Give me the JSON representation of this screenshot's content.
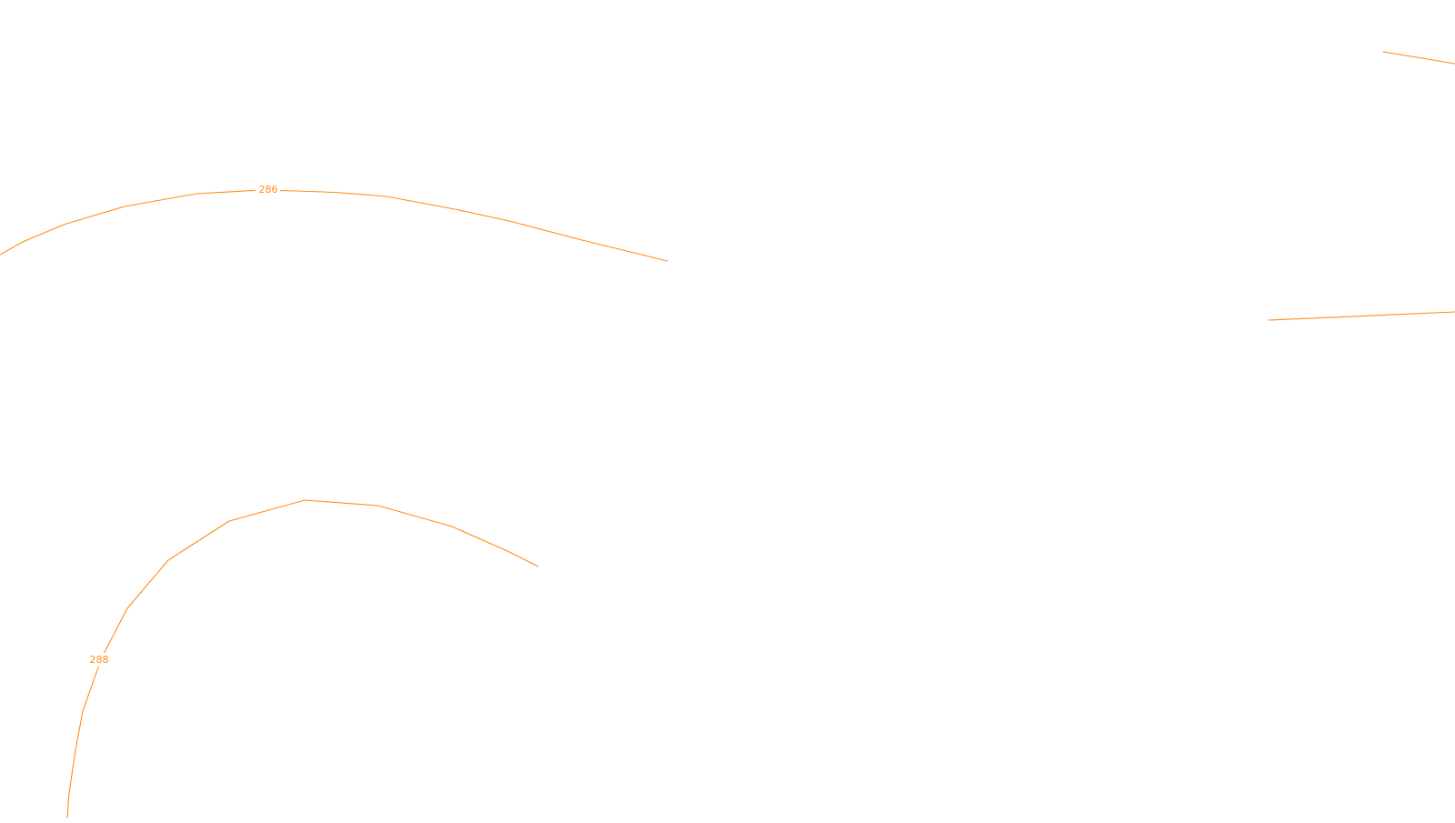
{
  "map": {
    "background_color": "#ffffff",
    "contour_color": "#ff8c1a",
    "labels": {
      "contour_286": "286",
      "contour_288": "288"
    }
  }
}
